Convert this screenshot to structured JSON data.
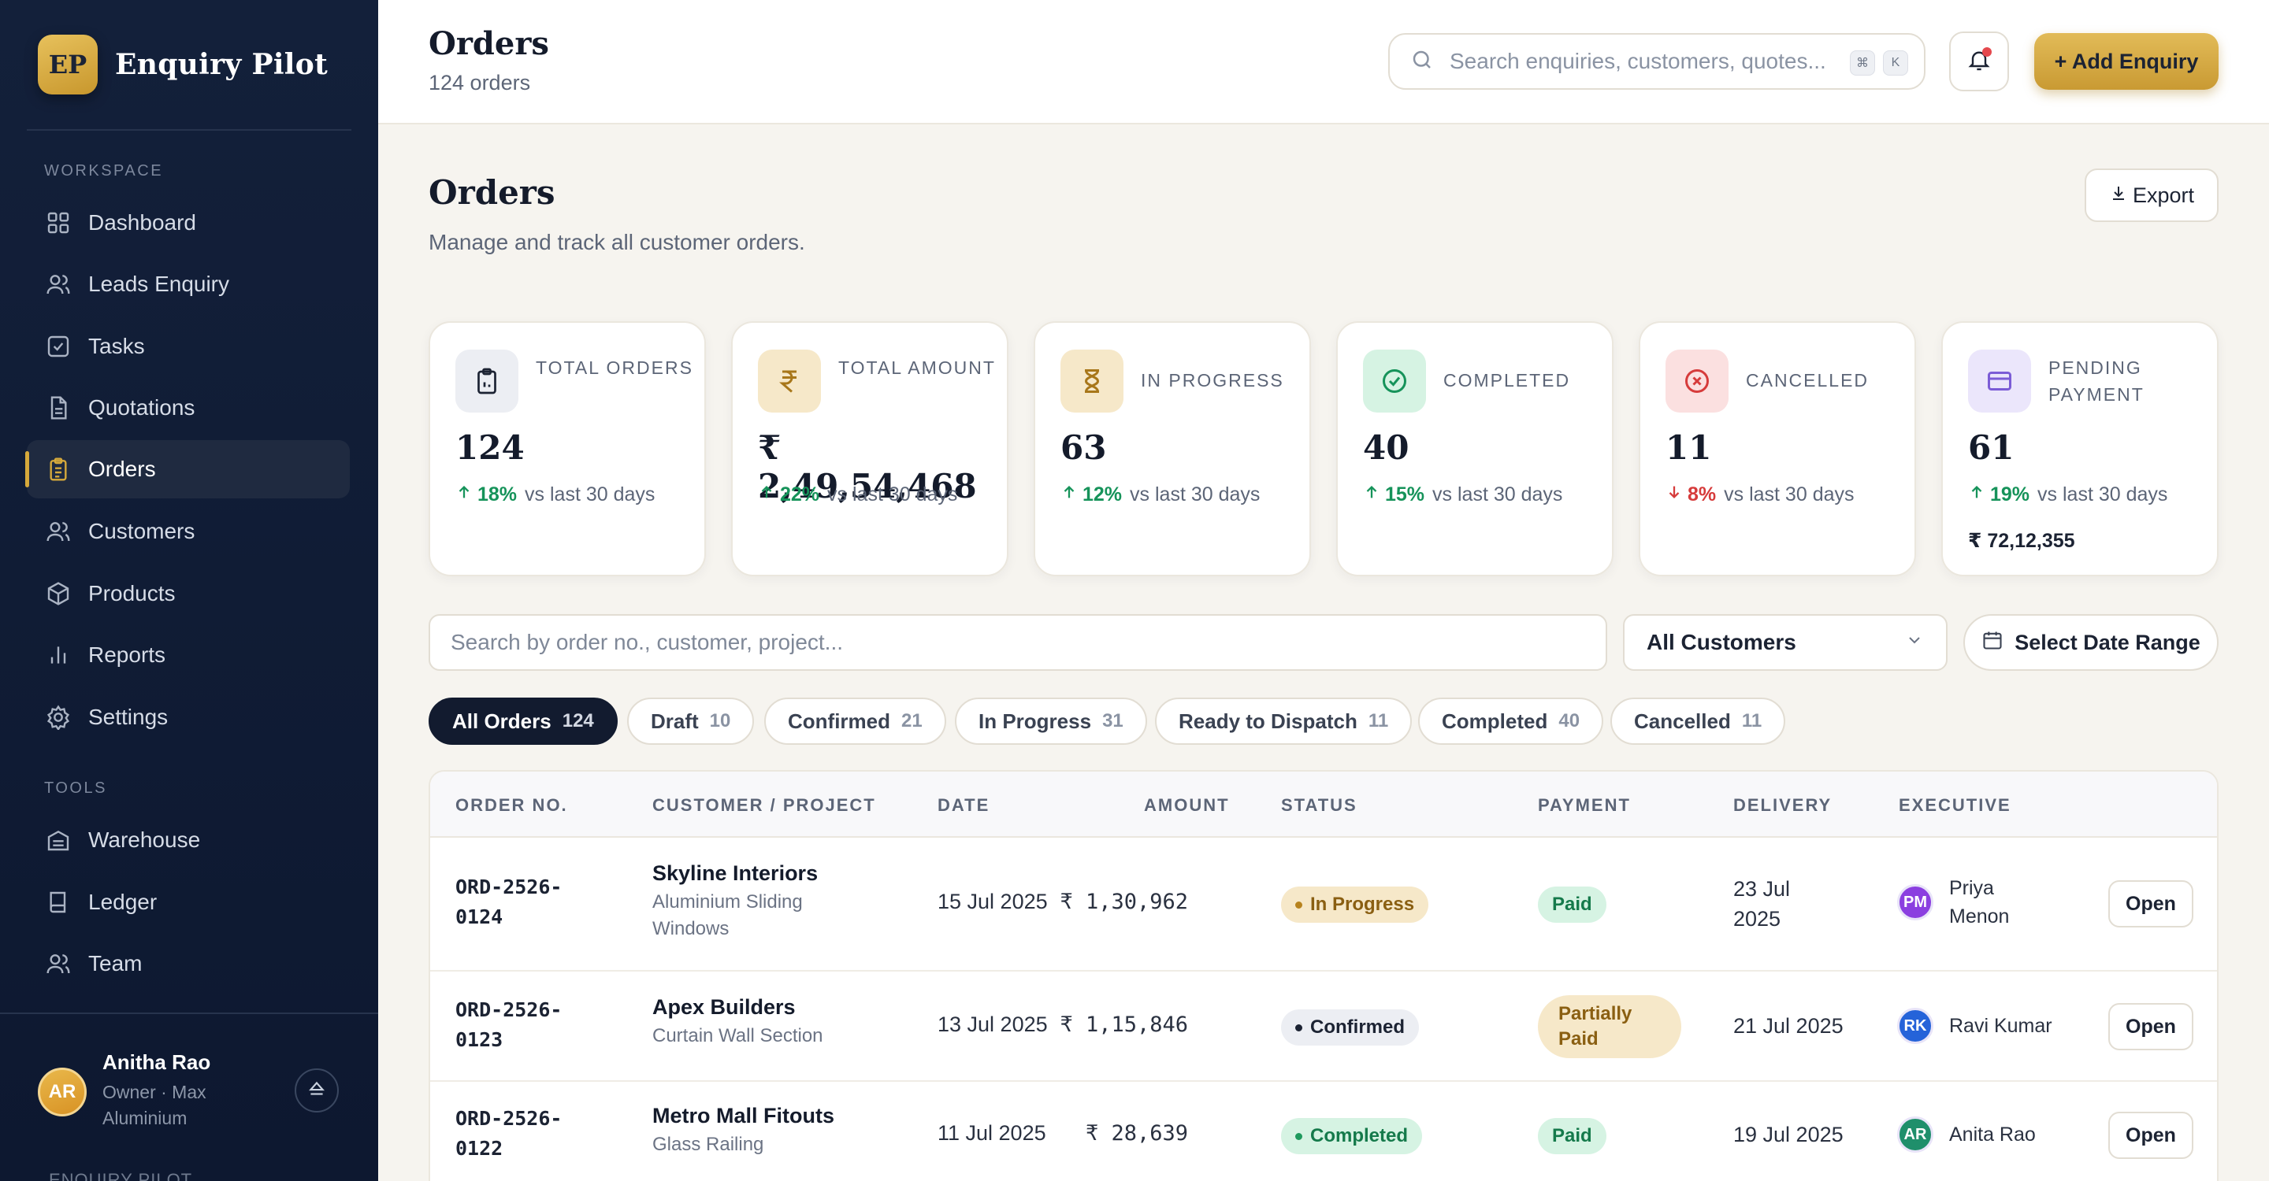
{
  "brand": {
    "logo": "EP",
    "name": "Enquiry Pilot"
  },
  "sidebar": {
    "workspace_label": "WORKSPACE",
    "tools_label": "TOOLS",
    "items": [
      {
        "label": "Dashboard",
        "icon": "grid-icon"
      },
      {
        "label": "Leads Enquiry",
        "icon": "users-icon"
      },
      {
        "label": "Tasks",
        "icon": "checkbox-icon"
      },
      {
        "label": "Quotations",
        "icon": "document-icon"
      },
      {
        "label": "Orders",
        "icon": "clipboard-icon",
        "active": true
      },
      {
        "label": "Customers",
        "icon": "users-icon"
      },
      {
        "label": "Products",
        "icon": "box-icon"
      },
      {
        "label": "Reports",
        "icon": "bar-chart-icon"
      },
      {
        "label": "Settings",
        "icon": "gear-icon"
      }
    ],
    "tools": [
      {
        "label": "Warehouse",
        "icon": "warehouse-icon"
      },
      {
        "label": "Ledger",
        "icon": "book-icon"
      },
      {
        "label": "Team",
        "icon": "users-icon"
      }
    ],
    "user": {
      "initials": "AR",
      "name": "Anitha Rao",
      "role": "Owner · Max Aluminium"
    },
    "cut_text": "ENQUIRY PILOT"
  },
  "header": {
    "title": "Orders",
    "subtitle": "124 orders",
    "search_placeholder": "Search enquiries, customers, quotes...",
    "kbd_cmd": "⌘",
    "kbd_key": "K",
    "add_label": "+ Add Enquiry"
  },
  "page": {
    "title": "Orders",
    "subtitle": "Manage and track all customer orders.",
    "export_label": "Export"
  },
  "stats": [
    {
      "label": "TOTAL ORDERS",
      "value": "124",
      "trend": "up",
      "pct": "18%",
      "vs": "vs last 30 days",
      "icon": "clipboard-icon",
      "bg": "#eceef3",
      "fg": "#1c2333"
    },
    {
      "label": "TOTAL AMOUNT",
      "value": "₹ 2,49,54,468",
      "trend": "up",
      "pct": "22%",
      "vs": "vs last 30 days",
      "icon": "rupee-icon",
      "bg": "#f6e8c9",
      "fg": "#a8771a"
    },
    {
      "label": "IN PROGRESS",
      "value": "63",
      "trend": "up",
      "pct": "12%",
      "vs": "vs last 30 days",
      "icon": "hourglass-icon",
      "bg": "#f6e8c9",
      "fg": "#a8771a"
    },
    {
      "label": "COMPLETED",
      "value": "40",
      "trend": "up",
      "pct": "15%",
      "vs": "vs last 30 days",
      "icon": "check-circle-icon",
      "bg": "#d6f3e3",
      "fg": "#16935a"
    },
    {
      "label": "CANCELLED",
      "value": "11",
      "trend": "down",
      "pct": "8%",
      "vs": "vs last 30 days",
      "icon": "x-circle-icon",
      "bg": "#fbe0e0",
      "fg": "#d63b3b"
    },
    {
      "label": "PENDING PAYMENT",
      "value": "61",
      "trend": "up",
      "pct": "19%",
      "vs": "vs last 30 days",
      "extra": "₹ 72,12,355",
      "icon": "credit-card-icon",
      "bg": "#ebe6fb",
      "fg": "#7b5cd6"
    }
  ],
  "filters": {
    "search_placeholder": "Search by order no., customer, project...",
    "customer_select": "All Customers",
    "date_range": "Select Date Range"
  },
  "tabs": [
    {
      "label": "All Orders",
      "count": "124",
      "active": true
    },
    {
      "label": "Draft",
      "count": "10"
    },
    {
      "label": "Confirmed",
      "count": "21"
    },
    {
      "label": "In Progress",
      "count": "31"
    },
    {
      "label": "Ready to Dispatch",
      "count": "11"
    },
    {
      "label": "Completed",
      "count": "40"
    },
    {
      "label": "Cancelled",
      "count": "11"
    }
  ],
  "table": {
    "columns": [
      "ORDER NO.",
      "CUSTOMER / PROJECT",
      "DATE",
      "AMOUNT",
      "STATUS",
      "PAYMENT",
      "DELIVERY",
      "EXECUTIVE"
    ],
    "rows": [
      {
        "order_no_1": "ORD-2526-",
        "order_no_2": "0124",
        "customer": "Skyline Interiors",
        "project": "Aluminium Sliding Windows",
        "date": "15 Jul 2025",
        "amount": "₹ 1,30,962",
        "status": "In Progress",
        "payment": "Paid",
        "delivery": "23 Jul 2025",
        "exec_initials": "PM",
        "exec_name": "Priya Menon",
        "exec_color": "#8b3fe0",
        "action": "Open"
      },
      {
        "order_no_1": "ORD-2526-",
        "order_no_2": "0123",
        "customer": "Apex Builders",
        "project": "Curtain Wall Section",
        "date": "13 Jul 2025",
        "amount": "₹ 1,15,846",
        "status": "Confirmed",
        "payment": "Partially Paid",
        "delivery": "21 Jul 2025",
        "exec_initials": "RK",
        "exec_name": "Ravi Kumar",
        "exec_color": "#2563d9",
        "action": "Open"
      },
      {
        "order_no_1": "ORD-2526-",
        "order_no_2": "0122",
        "customer": "Metro Mall Fitouts",
        "project": "Glass Railing",
        "date": "11 Jul 2025",
        "amount": "₹ 28,639",
        "status": "Completed",
        "payment": "Paid",
        "delivery": "19 Jul 2025",
        "exec_initials": "AR",
        "exec_name": "Anita Rao",
        "exec_color": "#1f8f6b",
        "action": "Open"
      }
    ]
  }
}
